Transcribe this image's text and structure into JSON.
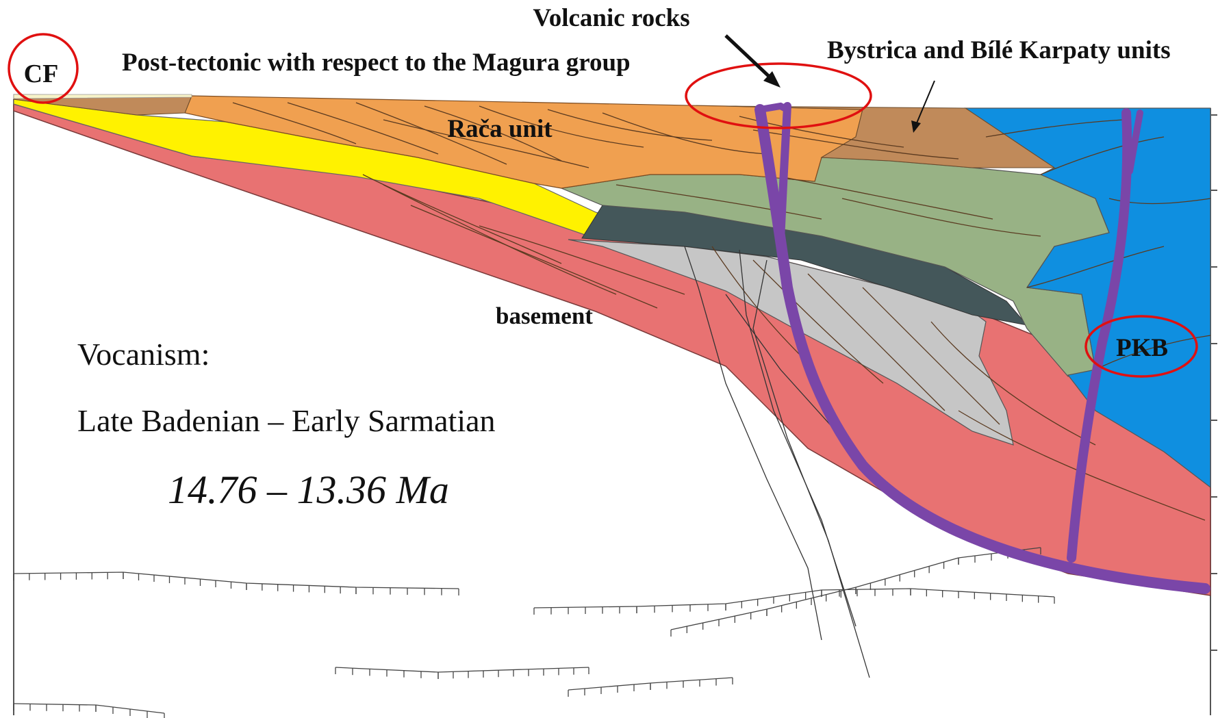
{
  "labels": {
    "cf": "CF",
    "post_tectonic": "Post-tectonic with respect to the Magura group",
    "volcanic_rocks": "Volcanic rocks",
    "bystrica": "Bystrica and Bílé Karpaty units",
    "raca_unit": "Rača unit",
    "basement": "basement",
    "pkb": "PKB",
    "volcanism_title": "Vocanism:",
    "volcanism_period": "Late Badenian – Early Sarmatian",
    "volcanism_age": "14.76 – 13.36  Ma"
  },
  "colors": {
    "basement": "#e87272",
    "yellow_unit": "#fff200",
    "raca_orange": "#f0a050",
    "brown_unit": "#c08a5a",
    "green_unit": "#98b285",
    "dark_unit": "#44575a",
    "gray_unit": "#c6c6c6",
    "pkb_blue": "#0f8fe0",
    "volcanic_purple": "#7a46a8",
    "highlight_red": "#e01010",
    "post_tectonic_text": "#4a3aa0",
    "line_color": "#333333"
  }
}
